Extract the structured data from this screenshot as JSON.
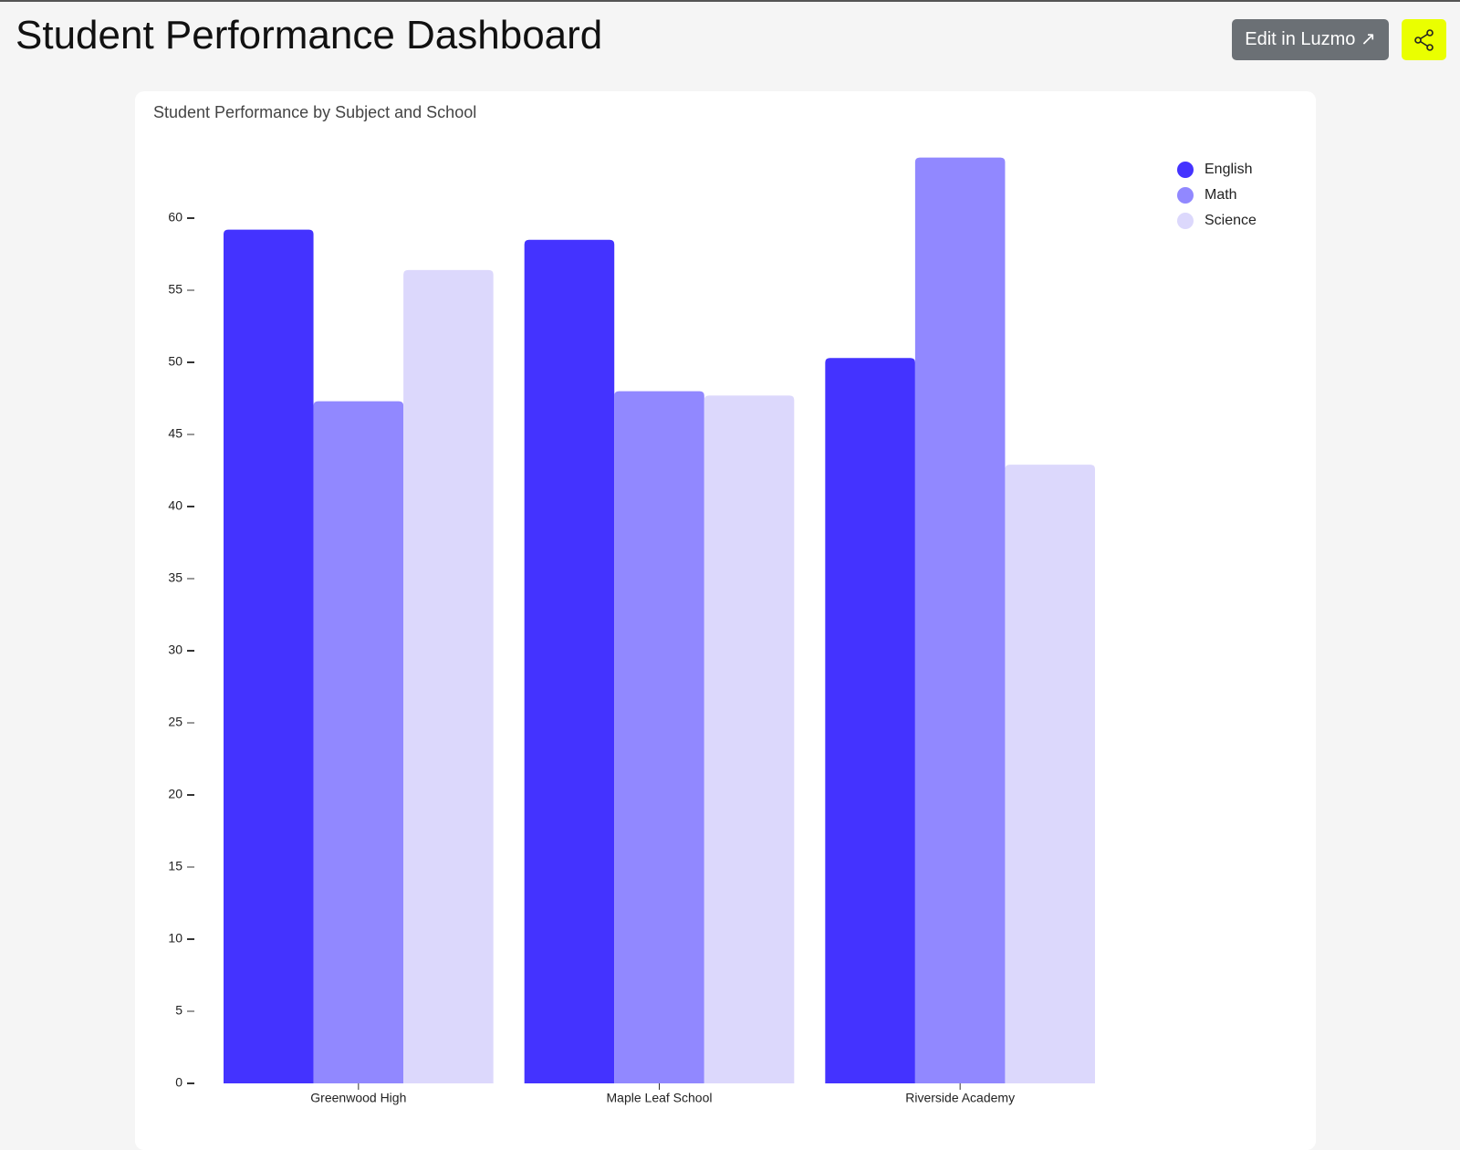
{
  "header": {
    "title": "Student Performance Dashboard",
    "edit_button": "Edit in Luzmo ↗"
  },
  "chart_data": {
    "type": "bar",
    "title": "Student Performance by Subject and School",
    "categories": [
      "Greenwood High",
      "Maple Leaf School",
      "Riverside Academy"
    ],
    "series": [
      {
        "name": "English",
        "color": "#4433ff",
        "values": [
          59.2,
          58.5,
          50.3
        ]
      },
      {
        "name": "Math",
        "color": "#9188ff",
        "values": [
          47.3,
          48.0,
          64.2
        ]
      },
      {
        "name": "Science",
        "color": "#dcd8fc",
        "values": [
          56.4,
          47.7,
          42.9
        ]
      }
    ],
    "ylim": [
      0,
      65
    ],
    "yticks": [
      0,
      5,
      10,
      15,
      20,
      25,
      30,
      35,
      40,
      45,
      50,
      55,
      60
    ],
    "legend": "top-right"
  }
}
